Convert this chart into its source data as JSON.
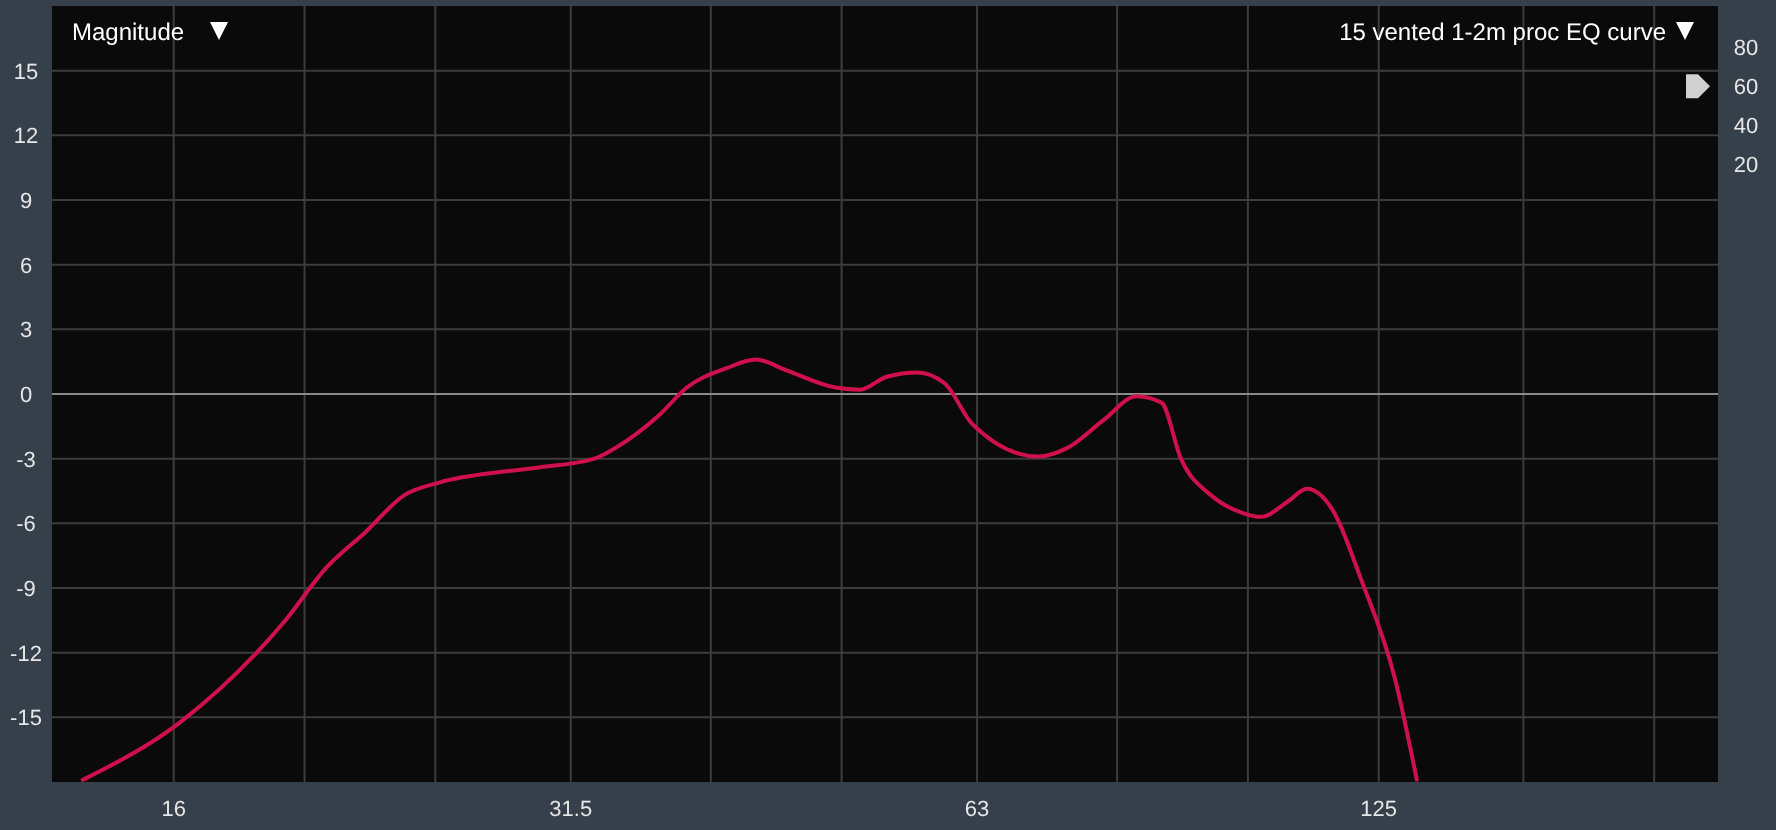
{
  "chart_data": {
    "type": "line",
    "title": "15 vented 1-2m proc EQ curve",
    "ylabel": "Magnitude",
    "log": "x",
    "grid": true,
    "marker": "none",
    "line_style": "solid",
    "xlim": [
      13,
      223
    ],
    "xticks": [
      16,
      {
        "value": 20,
        "label": null
      },
      {
        "value": 25,
        "label": null
      },
      31.5,
      {
        "value": 40,
        "label": null
      },
      {
        "value": 50,
        "label": null
      },
      63,
      {
        "value": 80,
        "label": null
      },
      {
        "value": 100,
        "label": null
      },
      125,
      {
        "value": 160,
        "label": null
      },
      {
        "value": 200,
        "label": null
      }
    ],
    "ylim": [
      -18,
      18
    ],
    "yticks": [
      -15,
      -12,
      -9,
      -6,
      -3,
      0,
      3,
      6,
      9,
      12,
      15
    ],
    "y2lim": [
      -296,
      101
    ],
    "y2ticks": [
      20,
      40,
      60,
      80
    ],
    "series": [
      {
        "color": "#d0104c",
        "x": [
          13.7,
          16.2,
          19.3,
          20.8,
          22.2,
          23.7,
          25.2,
          28.1,
          29.9,
          32.8,
          34.0,
          36.6,
          38.4,
          41.1,
          43.2,
          45.5,
          49.5,
          51.6,
          54.0,
          56.9,
          59.6,
          62.5,
          69.9,
          73.5,
          78.2,
          82.7,
          86.3,
          89.2,
          93.9,
          98.9,
          102.3,
          107,
          110.6,
          115.6,
          121.3,
          128.5,
          133.4
        ],
        "values": [
          -17.9,
          -15.2,
          -10.6,
          -8.0,
          -6.4,
          -4.7,
          -4.1,
          -3.6,
          -3.4,
          -3.0,
          -2.5,
          -1.0,
          0.3,
          1.2,
          1.6,
          1.1,
          0.3,
          0.2,
          0.8,
          1.0,
          0.5,
          -1.4,
          -2.9,
          -2.5,
          -1.2,
          -0.1,
          -0.4,
          -3.0,
          -4.7,
          -5.5,
          -5.7,
          -5.0,
          -4.4,
          -5.4,
          -8.6,
          -13.2,
          -17.9
        ]
      }
    ]
  }
}
